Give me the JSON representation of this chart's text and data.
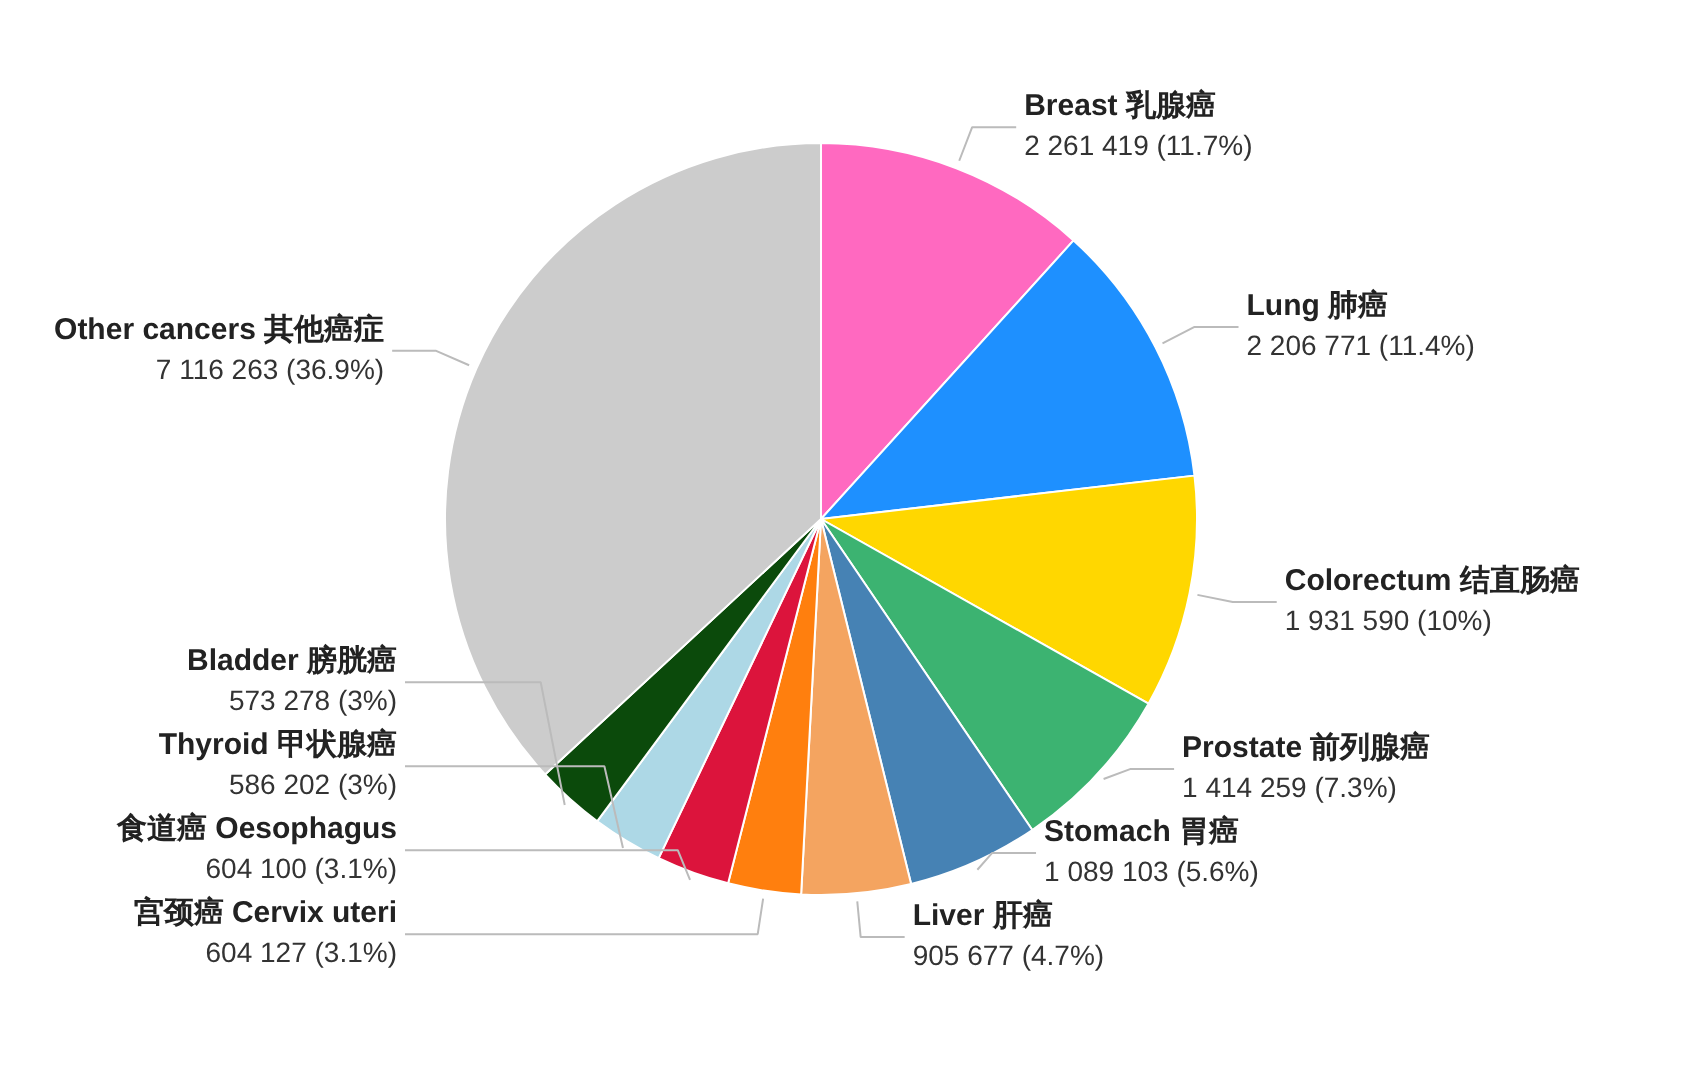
{
  "chart_data": {
    "type": "pie",
    "categories": [
      "Breast 乳腺癌",
      "Lung 肺癌",
      "Colorectum 结直肠癌",
      "Prostate 前列腺癌",
      "Stomach 胃癌",
      "Liver 肝癌",
      "宫颈癌 Cervix uteri",
      "食道癌 Oesophagus",
      "Thyroid 甲状腺癌",
      "Bladder 膀胱癌",
      "Other cancers 其他癌症"
    ],
    "values": [
      2261419,
      2206771,
      1931590,
      1414259,
      1089103,
      905677,
      604127,
      604100,
      586202,
      573278,
      7116263
    ],
    "colors": [
      "#ff69c0",
      "#1e90ff",
      "#ffd700",
      "#3cb371",
      "#4682b4",
      "#f4a460",
      "#ff7f0e",
      "#dc143c",
      "#add8e6",
      "#0b4a0b",
      "#cccccc"
    ],
    "value_labels": [
      "2 261 419 (11.7%)",
      "2 206 771 (11.4%)",
      "1 931 590 (10%)",
      "1 414 259 (7.3%)",
      "1 089 103 (5.6%)",
      "905 677 (4.7%)",
      "604 127 (3.1%)",
      "604 100 (3.1%)",
      "586 202 (3%)",
      "573 278 (3%)",
      "7 116 263 (36.9%)"
    ]
  }
}
